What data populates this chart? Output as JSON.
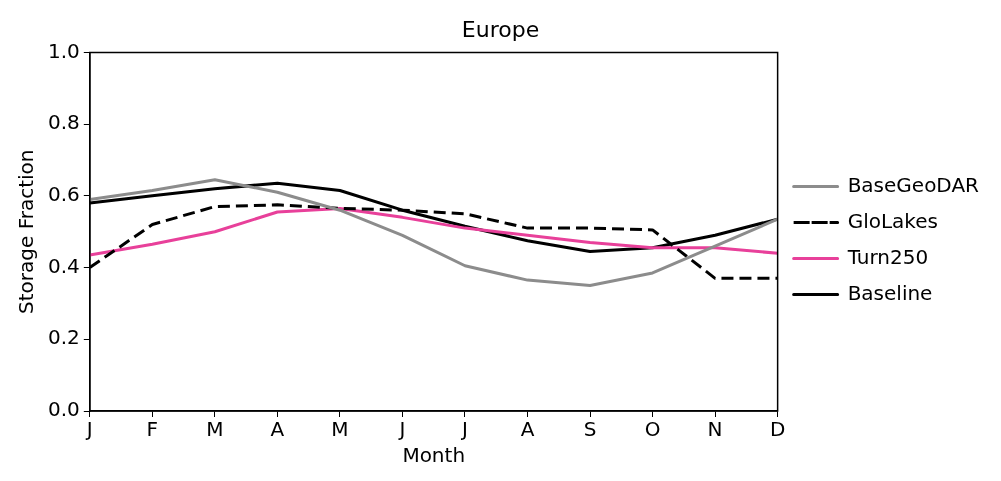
{
  "chart_data": {
    "type": "line",
    "title": "Europe",
    "xlabel": "Month",
    "ylabel": "Storage Fraction",
    "categories": [
      "J",
      "F",
      "M",
      "A",
      "M",
      "J",
      "J",
      "A",
      "S",
      "O",
      "N",
      "D"
    ],
    "series": [
      {
        "name": "BaseGeoDAR",
        "color": "#8c8c8c",
        "line_style": "solid",
        "values": [
          0.59,
          0.615,
          0.645,
          0.61,
          0.56,
          0.49,
          0.405,
          0.365,
          0.35,
          0.385,
          0.46,
          0.535
        ]
      },
      {
        "name": "GloLakes",
        "color": "#000000",
        "line_style": "dashed",
        "values": [
          0.4,
          0.52,
          0.57,
          0.575,
          0.565,
          0.56,
          0.55,
          0.51,
          0.51,
          0.505,
          0.37,
          0.37
        ]
      },
      {
        "name": "Turn250",
        "color": "#e8409a",
        "line_style": "solid",
        "values": [
          0.435,
          0.465,
          0.5,
          0.555,
          0.565,
          0.54,
          0.51,
          0.49,
          0.47,
          0.455,
          0.455,
          0.44
        ]
      },
      {
        "name": "Baseline",
        "color": "#000000",
        "line_style": "solid",
        "values": [
          0.58,
          0.6,
          0.62,
          0.635,
          0.615,
          0.56,
          0.515,
          0.475,
          0.445,
          0.455,
          0.49,
          0.535
        ]
      }
    ],
    "ylim": [
      0,
      1
    ],
    "yticks": [
      {
        "value": 0,
        "label": "0.0"
      },
      {
        "value": 0.2,
        "label": "0.2"
      },
      {
        "value": 0.4,
        "label": "0.4"
      },
      {
        "value": 0.6,
        "label": "0.6"
      },
      {
        "value": 0.8,
        "label": "0.8"
      },
      {
        "value": 1,
        "label": "1.0"
      }
    ],
    "grid": false,
    "legend": "right",
    "marker": "none"
  }
}
